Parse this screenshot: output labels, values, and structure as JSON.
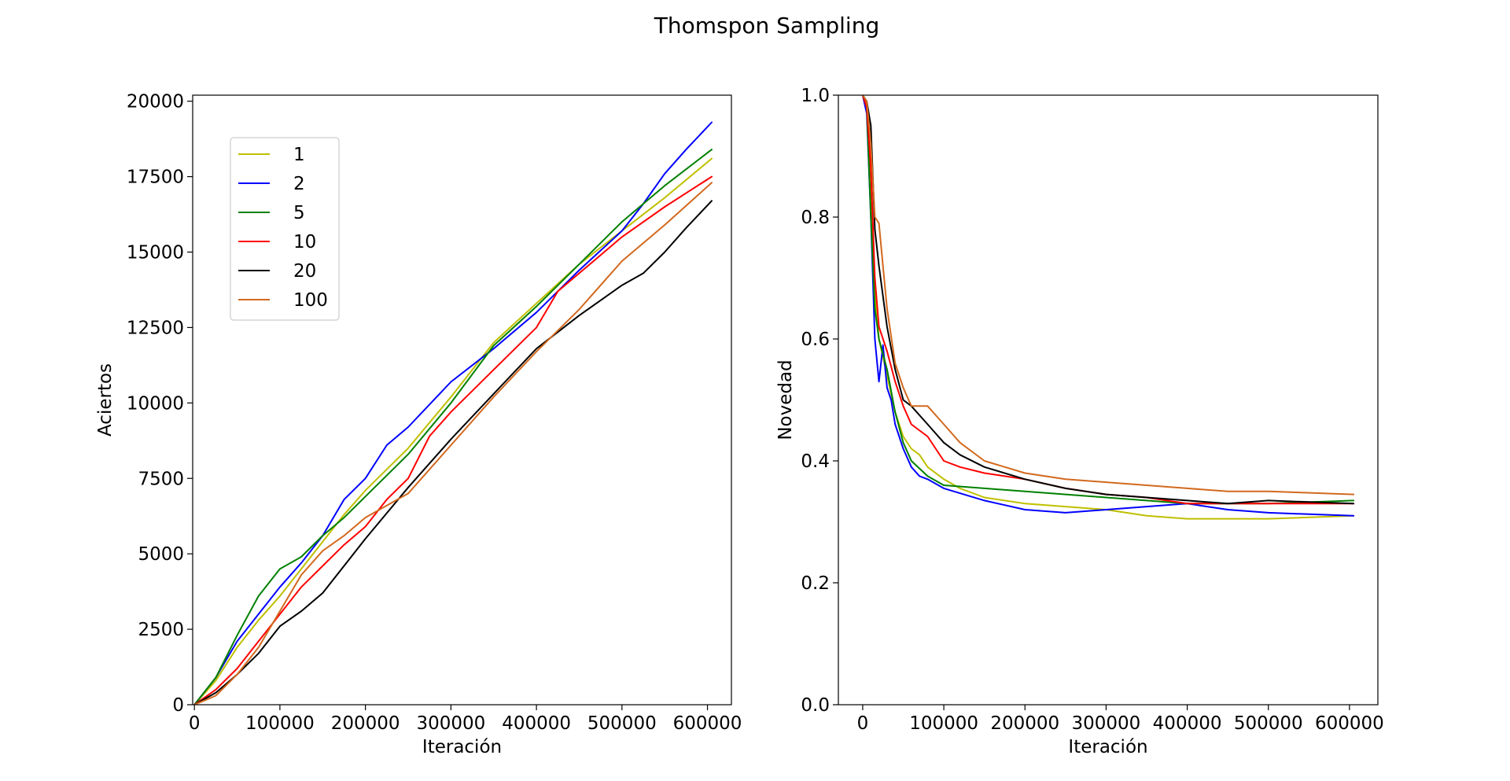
{
  "figure": {
    "title": "Thomspon Sampling"
  },
  "chart_data": [
    {
      "type": "line",
      "title": "",
      "xlabel": "Iteración",
      "ylabel": "Aciertos",
      "xlim": [
        -2000,
        628000
      ],
      "ylim": [
        0,
        20200
      ],
      "xticks": [
        0,
        100000,
        200000,
        300000,
        400000,
        500000,
        600000
      ],
      "xtick_labels": [
        "0",
        "100000",
        "200000",
        "300000",
        "400000",
        "500000",
        "600000"
      ],
      "yticks": [
        0,
        2500,
        5000,
        7500,
        10000,
        12500,
        15000,
        17500,
        20000
      ],
      "ytick_labels": [
        "0",
        "2500",
        "5000",
        "7500",
        "10000",
        "12500",
        "15000",
        "17500",
        "20000"
      ],
      "grid": false,
      "legend": "upper-left",
      "series": [
        {
          "name": "1",
          "color": "#bfbf00",
          "x": [
            0,
            25000,
            50000,
            75000,
            100000,
            125000,
            150000,
            175000,
            200000,
            250000,
            300000,
            350000,
            400000,
            450000,
            500000,
            550000,
            605000
          ],
          "y": [
            0,
            800,
            1900,
            2800,
            3600,
            4500,
            5400,
            6300,
            7100,
            8500,
            10200,
            12000,
            13300,
            14600,
            15700,
            16800,
            18100
          ]
        },
        {
          "name": "2",
          "color": "#0000ff",
          "x": [
            0,
            25000,
            50000,
            75000,
            100000,
            125000,
            150000,
            175000,
            200000,
            225000,
            250000,
            300000,
            350000,
            400000,
            450000,
            500000,
            525000,
            550000,
            575000,
            605000
          ],
          "y": [
            0,
            900,
            2100,
            3000,
            3900,
            4700,
            5600,
            6800,
            7500,
            8600,
            9200,
            10700,
            11800,
            13000,
            14400,
            15700,
            16600,
            17600,
            18400,
            19300
          ]
        },
        {
          "name": "5",
          "color": "#008000",
          "x": [
            0,
            25000,
            50000,
            75000,
            100000,
            125000,
            150000,
            175000,
            200000,
            250000,
            300000,
            350000,
            400000,
            450000,
            500000,
            550000,
            605000
          ],
          "y": [
            0,
            900,
            2300,
            3600,
            4500,
            4900,
            5600,
            6200,
            6900,
            8300,
            10000,
            11900,
            13200,
            14600,
            16000,
            17200,
            18400
          ]
        },
        {
          "name": "10",
          "color": "#ff0000",
          "x": [
            0,
            25000,
            50000,
            75000,
            100000,
            125000,
            150000,
            175000,
            200000,
            225000,
            250000,
            275000,
            300000,
            350000,
            400000,
            425000,
            450000,
            500000,
            550000,
            605000
          ],
          "y": [
            0,
            500,
            1200,
            2100,
            3000,
            3900,
            4600,
            5300,
            5900,
            6800,
            7500,
            8900,
            9700,
            11100,
            12500,
            13700,
            14300,
            15500,
            16500,
            17500
          ]
        },
        {
          "name": "20",
          "color": "#000000",
          "x": [
            0,
            25000,
            50000,
            75000,
            100000,
            125000,
            150000,
            175000,
            200000,
            250000,
            300000,
            350000,
            400000,
            450000,
            500000,
            525000,
            550000,
            575000,
            605000
          ],
          "y": [
            0,
            400,
            1000,
            1700,
            2600,
            3100,
            3700,
            4600,
            5500,
            7200,
            8800,
            10300,
            11800,
            12900,
            13900,
            14300,
            15000,
            15800,
            16700
          ]
        },
        {
          "name": "100",
          "color": "#d2691e",
          "x": [
            0,
            25000,
            50000,
            75000,
            100000,
            125000,
            150000,
            175000,
            200000,
            250000,
            300000,
            350000,
            400000,
            450000,
            500000,
            550000,
            605000
          ],
          "y": [
            0,
            300,
            1000,
            1900,
            3100,
            4300,
            5100,
            5600,
            6200,
            7000,
            8600,
            10200,
            11700,
            13100,
            14700,
            15900,
            17300
          ]
        }
      ]
    },
    {
      "type": "line",
      "title": "",
      "xlabel": "Iteración",
      "ylabel": "Novedad",
      "xlim": [
        -30000,
        635000
      ],
      "ylim": [
        0.0,
        1.0
      ],
      "xticks": [
        0,
        100000,
        200000,
        300000,
        400000,
        500000,
        600000
      ],
      "xtick_labels": [
        "0",
        "100000",
        "200000",
        "300000",
        "400000",
        "500000",
        "600000"
      ],
      "yticks": [
        0.0,
        0.2,
        0.4,
        0.6,
        0.8,
        1.0
      ],
      "ytick_labels": [
        "0.0",
        "0.2",
        "0.4",
        "0.6",
        "0.8",
        "1.0"
      ],
      "grid": false,
      "legend": "none",
      "series": [
        {
          "name": "1",
          "color": "#bfbf00",
          "x": [
            0,
            5000,
            10000,
            15000,
            20000,
            30000,
            40000,
            50000,
            60000,
            70000,
            80000,
            100000,
            120000,
            150000,
            200000,
            250000,
            300000,
            350000,
            400000,
            450000,
            500000,
            605000
          ],
          "y": [
            1.0,
            0.98,
            0.85,
            0.68,
            0.6,
            0.54,
            0.48,
            0.44,
            0.42,
            0.41,
            0.39,
            0.37,
            0.355,
            0.34,
            0.33,
            0.325,
            0.32,
            0.31,
            0.305,
            0.305,
            0.305,
            0.31
          ]
        },
        {
          "name": "2",
          "color": "#0000ff",
          "x": [
            0,
            5000,
            10000,
            15000,
            20000,
            25000,
            30000,
            35000,
            40000,
            50000,
            60000,
            70000,
            80000,
            100000,
            150000,
            200000,
            250000,
            300000,
            350000,
            400000,
            450000,
            500000,
            605000
          ],
          "y": [
            1.0,
            0.97,
            0.8,
            0.6,
            0.53,
            0.59,
            0.52,
            0.5,
            0.46,
            0.42,
            0.39,
            0.375,
            0.37,
            0.355,
            0.335,
            0.32,
            0.315,
            0.32,
            0.325,
            0.33,
            0.32,
            0.315,
            0.31
          ]
        },
        {
          "name": "5",
          "color": "#008000",
          "x": [
            0,
            5000,
            10000,
            15000,
            20000,
            30000,
            40000,
            50000,
            60000,
            80000,
            100000,
            150000,
            200000,
            250000,
            300000,
            350000,
            400000,
            450000,
            500000,
            605000
          ],
          "y": [
            1.0,
            0.98,
            0.8,
            0.65,
            0.6,
            0.55,
            0.48,
            0.43,
            0.4,
            0.375,
            0.36,
            0.355,
            0.35,
            0.345,
            0.34,
            0.335,
            0.33,
            0.33,
            0.33,
            0.335
          ]
        },
        {
          "name": "10",
          "color": "#ff0000",
          "x": [
            0,
            5000,
            10000,
            15000,
            20000,
            30000,
            40000,
            50000,
            60000,
            80000,
            100000,
            120000,
            150000,
            200000,
            250000,
            300000,
            350000,
            400000,
            450000,
            500000,
            605000
          ],
          "y": [
            1.0,
            0.98,
            0.88,
            0.7,
            0.62,
            0.58,
            0.53,
            0.49,
            0.46,
            0.44,
            0.4,
            0.39,
            0.38,
            0.37,
            0.355,
            0.345,
            0.34,
            0.33,
            0.33,
            0.33,
            0.33
          ]
        },
        {
          "name": "20",
          "color": "#000000",
          "x": [
            0,
            5000,
            10000,
            15000,
            20000,
            30000,
            40000,
            50000,
            60000,
            80000,
            100000,
            120000,
            150000,
            200000,
            250000,
            300000,
            350000,
            400000,
            450000,
            500000,
            605000
          ],
          "y": [
            1.0,
            0.99,
            0.95,
            0.78,
            0.72,
            0.62,
            0.55,
            0.5,
            0.49,
            0.46,
            0.43,
            0.41,
            0.39,
            0.37,
            0.355,
            0.345,
            0.34,
            0.335,
            0.33,
            0.335,
            0.33
          ]
        },
        {
          "name": "100",
          "color": "#d2691e",
          "x": [
            0,
            5000,
            10000,
            15000,
            20000,
            25000,
            30000,
            40000,
            50000,
            60000,
            80000,
            100000,
            120000,
            150000,
            200000,
            250000,
            300000,
            350000,
            400000,
            450000,
            500000,
            605000
          ],
          "y": [
            1.0,
            0.99,
            0.92,
            0.8,
            0.79,
            0.72,
            0.65,
            0.56,
            0.52,
            0.49,
            0.49,
            0.46,
            0.43,
            0.4,
            0.38,
            0.37,
            0.365,
            0.36,
            0.355,
            0.35,
            0.35,
            0.345
          ]
        }
      ]
    }
  ]
}
